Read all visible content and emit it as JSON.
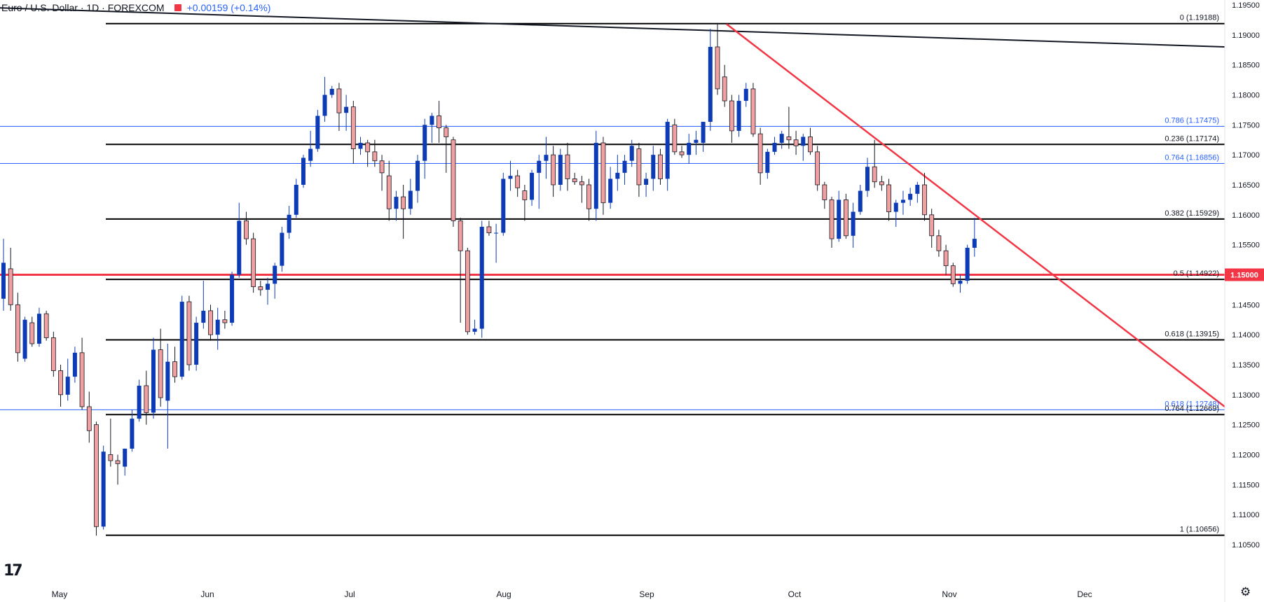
{
  "header": {
    "title": "Euro / U.S. Dollar · 1D · FOREXCOM",
    "change": "+0.00159 (+0.14%)",
    "change_color": "#2962ff",
    "marker_color": "#f23645"
  },
  "chart_data": {
    "type": "candlestick",
    "price_axis": {
      "ticks": [
        "1.19500",
        "1.19000",
        "1.18500",
        "1.18000",
        "1.17500",
        "1.17000",
        "1.16500",
        "1.16000",
        "1.15500",
        "1.15000",
        "1.14500",
        "1.14000",
        "1.13500",
        "1.13000",
        "1.12500",
        "1.12000",
        "1.11500",
        "1.11000",
        "1.10500"
      ],
      "ylim": [
        1.1038,
        1.196
      ]
    },
    "time_axis": {
      "labels": [
        "May",
        "Jun",
        "Jul",
        "Aug",
        "Sep",
        "Oct",
        "Nov",
        "Dec"
      ]
    },
    "current_price": {
      "label": "1.15000",
      "value": 1.15,
      "color": "#f23645"
    },
    "levels": [
      {
        "label": "0 (1.19188)",
        "value": 1.19188,
        "color": "#000000"
      },
      {
        "label": "0.786 (1.17475)",
        "value": 1.17475,
        "color": "#2962ff"
      },
      {
        "label": "0.236 (1.17174)",
        "value": 1.17174,
        "color": "#000000"
      },
      {
        "label": "0.764 (1.16856)",
        "value": 1.16856,
        "color": "#2962ff"
      },
      {
        "label": "0.382 (1.15929)",
        "value": 1.15929,
        "color": "#000000"
      },
      {
        "label": "",
        "value": 1.15,
        "color": "#f23645"
      },
      {
        "label": "0.5 (1.14922)",
        "value": 1.14922,
        "color": "#000000"
      },
      {
        "label": "0.618 (1.13915)",
        "value": 1.13915,
        "color": "#000000"
      },
      {
        "label": "0.618 (1.12748)",
        "value": 1.12748,
        "color": "#2962ff"
      },
      {
        "label": "0.764 (1.12669)",
        "value": 1.12669,
        "color": "#000000"
      },
      {
        "label": "1 (1.10656)",
        "value": 1.10656,
        "color": "#000000"
      }
    ],
    "up_color": "#0c3bb5",
    "down_color": "#f1a0a2",
    "candles": [
      {
        "o": 1.146,
        "h": 1.156,
        "l": 1.144,
        "c": 1.152
      },
      {
        "o": 1.151,
        "h": 1.1545,
        "l": 1.144,
        "c": 1.145
      },
      {
        "o": 1.145,
        "h": 1.147,
        "l": 1.1355,
        "c": 1.137
      },
      {
        "o": 1.136,
        "h": 1.143,
        "l": 1.1355,
        "c": 1.1425
      },
      {
        "o": 1.142,
        "h": 1.143,
        "l": 1.138,
        "c": 1.1385
      },
      {
        "o": 1.1385,
        "h": 1.1445,
        "l": 1.138,
        "c": 1.1435
      },
      {
        "o": 1.1435,
        "h": 1.144,
        "l": 1.139,
        "c": 1.1395
      },
      {
        "o": 1.1395,
        "h": 1.1405,
        "l": 1.133,
        "c": 1.134
      },
      {
        "o": 1.134,
        "h": 1.135,
        "l": 1.128,
        "c": 1.13
      },
      {
        "o": 1.13,
        "h": 1.136,
        "l": 1.129,
        "c": 1.133
      },
      {
        "o": 1.133,
        "h": 1.138,
        "l": 1.132,
        "c": 1.137
      },
      {
        "o": 1.137,
        "h": 1.1395,
        "l": 1.1275,
        "c": 1.128
      },
      {
        "o": 1.128,
        "h": 1.1305,
        "l": 1.122,
        "c": 1.124
      },
      {
        "o": 1.125,
        "h": 1.1255,
        "l": 1.1065,
        "c": 1.108
      },
      {
        "o": 1.108,
        "h": 1.1215,
        "l": 1.1075,
        "c": 1.1205
      },
      {
        "o": 1.12,
        "h": 1.126,
        "l": 1.118,
        "c": 1.119
      },
      {
        "o": 1.119,
        "h": 1.12,
        "l": 1.115,
        "c": 1.1185
      },
      {
        "o": 1.118,
        "h": 1.121,
        "l": 1.1165,
        "c": 1.121
      },
      {
        "o": 1.121,
        "h": 1.1275,
        "l": 1.1205,
        "c": 1.126
      },
      {
        "o": 1.126,
        "h": 1.1325,
        "l": 1.1255,
        "c": 1.1315
      },
      {
        "o": 1.1315,
        "h": 1.134,
        "l": 1.125,
        "c": 1.127
      },
      {
        "o": 1.127,
        "h": 1.1395,
        "l": 1.126,
        "c": 1.1375
      },
      {
        "o": 1.1375,
        "h": 1.141,
        "l": 1.128,
        "c": 1.1295
      },
      {
        "o": 1.129,
        "h": 1.1385,
        "l": 1.121,
        "c": 1.1355
      },
      {
        "o": 1.1355,
        "h": 1.138,
        "l": 1.132,
        "c": 1.133
      },
      {
        "o": 1.133,
        "h": 1.1465,
        "l": 1.1325,
        "c": 1.1455
      },
      {
        "o": 1.1455,
        "h": 1.1465,
        "l": 1.134,
        "c": 1.135
      },
      {
        "o": 1.135,
        "h": 1.143,
        "l": 1.134,
        "c": 1.142
      },
      {
        "o": 1.142,
        "h": 1.149,
        "l": 1.141,
        "c": 1.144
      },
      {
        "o": 1.144,
        "h": 1.145,
        "l": 1.139,
        "c": 1.14
      },
      {
        "o": 1.14,
        "h": 1.1445,
        "l": 1.1375,
        "c": 1.1425
      },
      {
        "o": 1.1425,
        "h": 1.144,
        "l": 1.141,
        "c": 1.142
      },
      {
        "o": 1.142,
        "h": 1.1505,
        "l": 1.1415,
        "c": 1.15
      },
      {
        "o": 1.15,
        "h": 1.162,
        "l": 1.1495,
        "c": 1.159
      },
      {
        "o": 1.159,
        "h": 1.1605,
        "l": 1.155,
        "c": 1.156
      },
      {
        "o": 1.156,
        "h": 1.157,
        "l": 1.147,
        "c": 1.148
      },
      {
        "o": 1.148,
        "h": 1.149,
        "l": 1.1465,
        "c": 1.1475
      },
      {
        "o": 1.1475,
        "h": 1.1495,
        "l": 1.145,
        "c": 1.1485
      },
      {
        "o": 1.1485,
        "h": 1.152,
        "l": 1.146,
        "c": 1.1515
      },
      {
        "o": 1.1515,
        "h": 1.158,
        "l": 1.1505,
        "c": 1.157
      },
      {
        "o": 1.157,
        "h": 1.1615,
        "l": 1.156,
        "c": 1.16
      },
      {
        "o": 1.16,
        "h": 1.166,
        "l": 1.1595,
        "c": 1.165
      },
      {
        "o": 1.165,
        "h": 1.17,
        "l": 1.1645,
        "c": 1.1695
      },
      {
        "o": 1.169,
        "h": 1.174,
        "l": 1.168,
        "c": 1.171
      },
      {
        "o": 1.171,
        "h": 1.1775,
        "l": 1.1705,
        "c": 1.1765
      },
      {
        "o": 1.1765,
        "h": 1.183,
        "l": 1.1755,
        "c": 1.18
      },
      {
        "o": 1.18,
        "h": 1.1815,
        "l": 1.1795,
        "c": 1.181
      },
      {
        "o": 1.181,
        "h": 1.182,
        "l": 1.174,
        "c": 1.177
      },
      {
        "o": 1.177,
        "h": 1.18,
        "l": 1.174,
        "c": 1.178
      },
      {
        "o": 1.178,
        "h": 1.179,
        "l": 1.1685,
        "c": 1.171
      },
      {
        "o": 1.171,
        "h": 1.173,
        "l": 1.17,
        "c": 1.172
      },
      {
        "o": 1.172,
        "h": 1.1725,
        "l": 1.168,
        "c": 1.1705
      },
      {
        "o": 1.1705,
        "h": 1.1725,
        "l": 1.168,
        "c": 1.169
      },
      {
        "o": 1.169,
        "h": 1.17,
        "l": 1.164,
        "c": 1.167
      },
      {
        "o": 1.1665,
        "h": 1.169,
        "l": 1.159,
        "c": 1.161
      },
      {
        "o": 1.161,
        "h": 1.164,
        "l": 1.159,
        "c": 1.163
      },
      {
        "o": 1.163,
        "h": 1.165,
        "l": 1.156,
        "c": 1.161
      },
      {
        "o": 1.161,
        "h": 1.166,
        "l": 1.16,
        "c": 1.164
      },
      {
        "o": 1.164,
        "h": 1.17,
        "l": 1.162,
        "c": 1.169
      },
      {
        "o": 1.169,
        "h": 1.176,
        "l": 1.166,
        "c": 1.175
      },
      {
        "o": 1.175,
        "h": 1.177,
        "l": 1.172,
        "c": 1.1765
      },
      {
        "o": 1.1765,
        "h": 1.179,
        "l": 1.172,
        "c": 1.1745
      },
      {
        "o": 1.1745,
        "h": 1.175,
        "l": 1.167,
        "c": 1.173
      },
      {
        "o": 1.1725,
        "h": 1.173,
        "l": 1.158,
        "c": 1.159
      },
      {
        "o": 1.159,
        "h": 1.1595,
        "l": 1.142,
        "c": 1.154
      },
      {
        "o": 1.154,
        "h": 1.1545,
        "l": 1.14,
        "c": 1.1405
      },
      {
        "o": 1.1405,
        "h": 1.1425,
        "l": 1.14,
        "c": 1.141
      },
      {
        "o": 1.141,
        "h": 1.159,
        "l": 1.1395,
        "c": 1.158
      },
      {
        "o": 1.158,
        "h": 1.159,
        "l": 1.1565,
        "c": 1.157
      },
      {
        "o": 1.157,
        "h": 1.1585,
        "l": 1.152,
        "c": 1.157
      },
      {
        "o": 1.157,
        "h": 1.167,
        "l": 1.1565,
        "c": 1.166
      },
      {
        "o": 1.166,
        "h": 1.169,
        "l": 1.164,
        "c": 1.1665
      },
      {
        "o": 1.1665,
        "h": 1.1675,
        "l": 1.163,
        "c": 1.1645
      },
      {
        "o": 1.164,
        "h": 1.165,
        "l": 1.159,
        "c": 1.1625
      },
      {
        "o": 1.1625,
        "h": 1.1675,
        "l": 1.1615,
        "c": 1.167
      },
      {
        "o": 1.167,
        "h": 1.17,
        "l": 1.161,
        "c": 1.169
      },
      {
        "o": 1.169,
        "h": 1.173,
        "l": 1.166,
        "c": 1.17
      },
      {
        "o": 1.17,
        "h": 1.1715,
        "l": 1.163,
        "c": 1.165
      },
      {
        "o": 1.165,
        "h": 1.171,
        "l": 1.164,
        "c": 1.17
      },
      {
        "o": 1.17,
        "h": 1.172,
        "l": 1.164,
        "c": 1.166
      },
      {
        "o": 1.166,
        "h": 1.167,
        "l": 1.165,
        "c": 1.1655
      },
      {
        "o": 1.1655,
        "h": 1.1665,
        "l": 1.162,
        "c": 1.165
      },
      {
        "o": 1.165,
        "h": 1.166,
        "l": 1.159,
        "c": 1.161
      },
      {
        "o": 1.161,
        "h": 1.174,
        "l": 1.159,
        "c": 1.172
      },
      {
        "o": 1.172,
        "h": 1.173,
        "l": 1.16,
        "c": 1.162
      },
      {
        "o": 1.162,
        "h": 1.168,
        "l": 1.161,
        "c": 1.166
      },
      {
        "o": 1.166,
        "h": 1.17,
        "l": 1.164,
        "c": 1.167
      },
      {
        "o": 1.167,
        "h": 1.17,
        "l": 1.165,
        "c": 1.169
      },
      {
        "o": 1.169,
        "h": 1.1725,
        "l": 1.168,
        "c": 1.1715
      },
      {
        "o": 1.171,
        "h": 1.172,
        "l": 1.163,
        "c": 1.165
      },
      {
        "o": 1.165,
        "h": 1.167,
        "l": 1.163,
        "c": 1.166
      },
      {
        "o": 1.166,
        "h": 1.1715,
        "l": 1.164,
        "c": 1.17
      },
      {
        "o": 1.17,
        "h": 1.171,
        "l": 1.165,
        "c": 1.166
      },
      {
        "o": 1.166,
        "h": 1.176,
        "l": 1.164,
        "c": 1.1755
      },
      {
        "o": 1.175,
        "h": 1.176,
        "l": 1.17,
        "c": 1.1705
      },
      {
        "o": 1.1705,
        "h": 1.1715,
        "l": 1.1695,
        "c": 1.17
      },
      {
        "o": 1.17,
        "h": 1.1735,
        "l": 1.1685,
        "c": 1.172
      },
      {
        "o": 1.172,
        "h": 1.174,
        "l": 1.17,
        "c": 1.1725
      },
      {
        "o": 1.172,
        "h": 1.1755,
        "l": 1.1705,
        "c": 1.1755
      },
      {
        "o": 1.1755,
        "h": 1.191,
        "l": 1.174,
        "c": 1.188
      },
      {
        "o": 1.188,
        "h": 1.192,
        "l": 1.18,
        "c": 1.181
      },
      {
        "o": 1.183,
        "h": 1.185,
        "l": 1.178,
        "c": 1.179
      },
      {
        "o": 1.179,
        "h": 1.18,
        "l": 1.172,
        "c": 1.174
      },
      {
        "o": 1.174,
        "h": 1.18,
        "l": 1.173,
        "c": 1.179
      },
      {
        "o": 1.179,
        "h": 1.182,
        "l": 1.178,
        "c": 1.181
      },
      {
        "o": 1.181,
        "h": 1.182,
        "l": 1.173,
        "c": 1.1735
      },
      {
        "o": 1.1735,
        "h": 1.1745,
        "l": 1.165,
        "c": 1.167
      },
      {
        "o": 1.167,
        "h": 1.171,
        "l": 1.166,
        "c": 1.1705
      },
      {
        "o": 1.1705,
        "h": 1.173,
        "l": 1.17,
        "c": 1.172
      },
      {
        "o": 1.172,
        "h": 1.174,
        "l": 1.171,
        "c": 1.1735
      },
      {
        "o": 1.173,
        "h": 1.178,
        "l": 1.171,
        "c": 1.1725
      },
      {
        "o": 1.1725,
        "h": 1.174,
        "l": 1.17,
        "c": 1.1715
      },
      {
        "o": 1.1715,
        "h": 1.1735,
        "l": 1.169,
        "c": 1.173
      },
      {
        "o": 1.173,
        "h": 1.1745,
        "l": 1.17,
        "c": 1.1705
      },
      {
        "o": 1.1705,
        "h": 1.1715,
        "l": 1.164,
        "c": 1.165
      },
      {
        "o": 1.165,
        "h": 1.1655,
        "l": 1.161,
        "c": 1.1625
      },
      {
        "o": 1.1625,
        "h": 1.163,
        "l": 1.1545,
        "c": 1.156
      },
      {
        "o": 1.156,
        "h": 1.164,
        "l": 1.1555,
        "c": 1.1625
      },
      {
        "o": 1.1625,
        "h": 1.1635,
        "l": 1.156,
        "c": 1.1565
      },
      {
        "o": 1.1565,
        "h": 1.162,
        "l": 1.1545,
        "c": 1.1605
      },
      {
        "o": 1.1605,
        "h": 1.165,
        "l": 1.16,
        "c": 1.164
      },
      {
        "o": 1.164,
        "h": 1.1695,
        "l": 1.163,
        "c": 1.168
      },
      {
        "o": 1.168,
        "h": 1.1725,
        "l": 1.1645,
        "c": 1.1655
      },
      {
        "o": 1.1655,
        "h": 1.1665,
        "l": 1.164,
        "c": 1.165
      },
      {
        "o": 1.165,
        "h": 1.166,
        "l": 1.159,
        "c": 1.1605
      },
      {
        "o": 1.1605,
        "h": 1.1625,
        "l": 1.158,
        "c": 1.162
      },
      {
        "o": 1.162,
        "h": 1.164,
        "l": 1.16,
        "c": 1.1625
      },
      {
        "o": 1.1625,
        "h": 1.1645,
        "l": 1.1615,
        "c": 1.1635
      },
      {
        "o": 1.1635,
        "h": 1.1655,
        "l": 1.162,
        "c": 1.165
      },
      {
        "o": 1.165,
        "h": 1.167,
        "l": 1.159,
        "c": 1.16
      },
      {
        "o": 1.16,
        "h": 1.161,
        "l": 1.1545,
        "c": 1.1565
      },
      {
        "o": 1.1565,
        "h": 1.1575,
        "l": 1.153,
        "c": 1.154
      },
      {
        "o": 1.154,
        "h": 1.155,
        "l": 1.15,
        "c": 1.1515
      },
      {
        "o": 1.1515,
        "h": 1.152,
        "l": 1.148,
        "c": 1.1485
      },
      {
        "o": 1.1485,
        "h": 1.15,
        "l": 1.147,
        "c": 1.149
      },
      {
        "o": 1.149,
        "h": 1.155,
        "l": 1.1485,
        "c": 1.1545
      },
      {
        "o": 1.1545,
        "h": 1.1595,
        "l": 1.153,
        "c": 1.156
      }
    ]
  }
}
